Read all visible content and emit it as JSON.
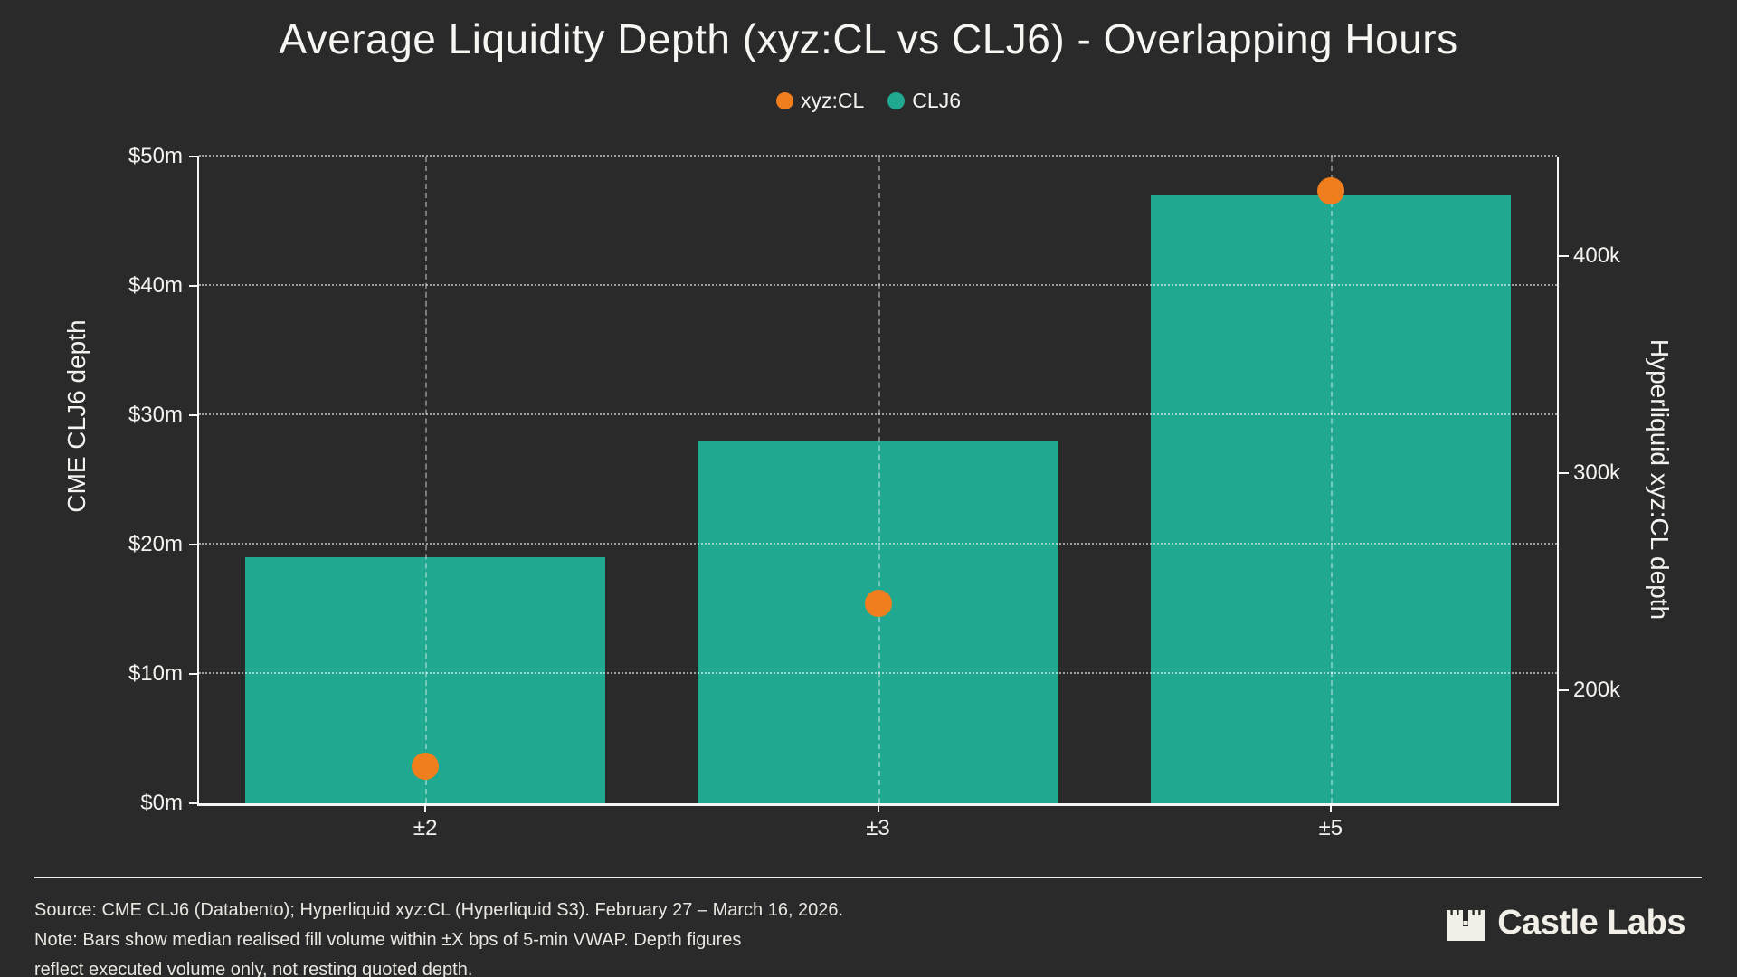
{
  "title": "Average Liquidity Depth (xyz:CL vs CLJ6) - Overlapping Hours",
  "legend": [
    {
      "label": "xyz:CL",
      "color": "#f07e1c"
    },
    {
      "label": "CLJ6",
      "color": "#21a890"
    }
  ],
  "chart_data": {
    "type": "bar",
    "title": "Average Liquidity Depth (xyz:CL vs CLJ6) - Overlapping Hours",
    "categories": [
      "±2",
      "±3",
      "±5"
    ],
    "series": [
      {
        "name": "CLJ6",
        "type": "bar",
        "axis": "left",
        "color": "#21a890",
        "values": [
          19,
          28,
          47
        ],
        "units": "$m (CME CLJ6 depth)"
      },
      {
        "name": "xyz:CL",
        "type": "scatter",
        "axis": "right",
        "color": "#f07e1c",
        "values": [
          165,
          240,
          430
        ],
        "units": "k (Hyperliquid xyz:CL depth)"
      }
    ],
    "left_axis": {
      "label": "CME CLJ6 depth",
      "range": [
        0,
        50
      ],
      "ticks": [
        {
          "value": 0,
          "label": "$0m"
        },
        {
          "value": 10,
          "label": "$10m"
        },
        {
          "value": 20,
          "label": "$20m"
        },
        {
          "value": 30,
          "label": "$30m"
        },
        {
          "value": 40,
          "label": "$40m"
        },
        {
          "value": 50,
          "label": "$50m"
        }
      ]
    },
    "right_axis": {
      "label": "Hyperliquid xyz:CL depth",
      "range": [
        148,
        446
      ],
      "ticks": [
        {
          "value": 200,
          "label": "200k"
        },
        {
          "value": 300,
          "label": "300k"
        },
        {
          "value": 400,
          "label": "400k"
        }
      ]
    },
    "grid": true,
    "legend_position": "top-center",
    "bar_width_frac": 0.795
  },
  "footer": {
    "source_line": "Source: CME CLJ6 (Databento); Hyperliquid xyz:CL (Hyperliquid S3). February 27 – March 16, 2026.",
    "note_line_1": "Note: Bars show median realised fill volume within ±X bps of 5-min VWAP. Depth figures",
    "note_line_2": "reflect executed volume only, not resting quoted depth.",
    "brand": "Castle Labs"
  }
}
